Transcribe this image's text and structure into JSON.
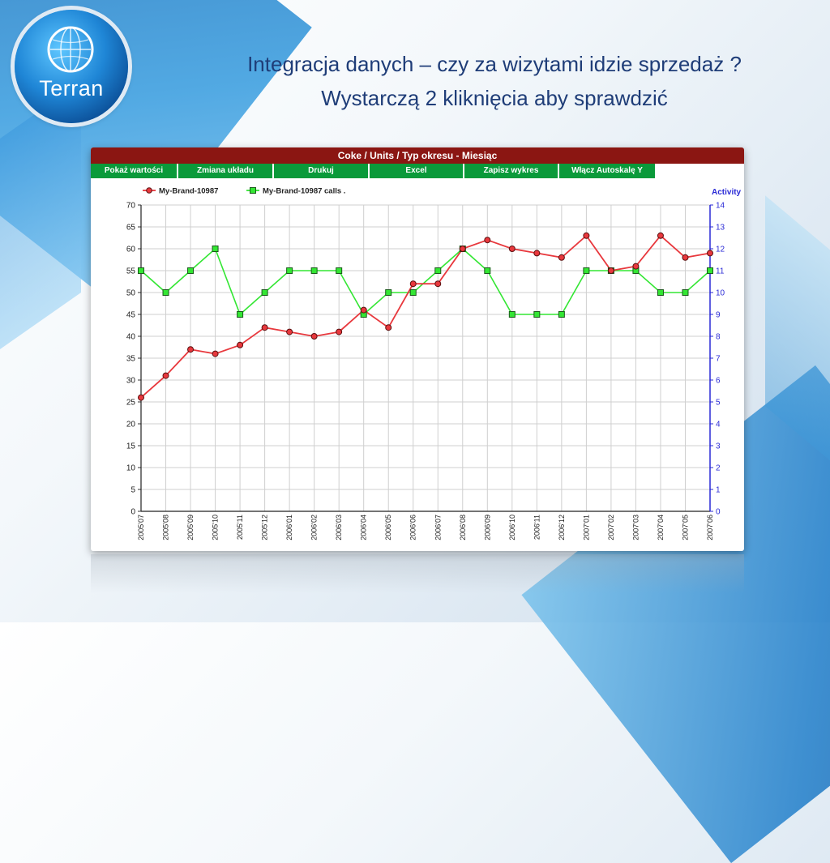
{
  "slide": {
    "logo_text": "Terran",
    "title_line1": "Integracja danych – czy za wizytami idzie sprzedaż ?",
    "title_line2": "Wystarczą 2 kliknięcia aby sprawdzić"
  },
  "panel": {
    "header": "Coke / Units / Typ okresu - Miesiąc",
    "buttons": [
      "Pokaż wartości",
      "Zmiana układu",
      "Drukuj",
      "Excel",
      "Zapisz wykres",
      "Włącz Autoskalę Y"
    ]
  },
  "colors": {
    "header": "#8b1612",
    "button": "#0a9a3a",
    "series1": "#e8383d",
    "series2": "#33e633",
    "right_axis": "#2a2ad6",
    "title": "#1f3d78"
  },
  "chart_data": {
    "type": "line",
    "title": "",
    "categories": [
      "2005'07",
      "2005'08",
      "2005'09",
      "2005'10",
      "2005'11",
      "2005'12",
      "2006'01",
      "2006'02",
      "2006'03",
      "2006'04",
      "2006'05",
      "2006'06",
      "2006'07",
      "2006'08",
      "2006'09",
      "2006'10",
      "2006'11",
      "2006'12",
      "2007'01",
      "2007'02",
      "2007'03",
      "2007'04",
      "2007'05",
      "2007'06"
    ],
    "series": [
      {
        "name": "My-Brand-10987",
        "axis": "left",
        "marker": "circle",
        "values": [
          26,
          31,
          37,
          36,
          38,
          42,
          41,
          40,
          41,
          46,
          42,
          52,
          52,
          60,
          62,
          60,
          59,
          58,
          63,
          55,
          56,
          63,
          58,
          59
        ]
      },
      {
        "name": "My-Brand-10987 calls .",
        "axis": "right",
        "marker": "square",
        "values": [
          11,
          10,
          11,
          12,
          9,
          10,
          11,
          11,
          11,
          9,
          10,
          10,
          11,
          12,
          11,
          9,
          9,
          9,
          11,
          11,
          11,
          10,
          10,
          11
        ]
      }
    ],
    "y_left": {
      "min": 0,
      "max": 70,
      "step": 5
    },
    "y_right": {
      "label": "Activity",
      "min": 0,
      "max": 14,
      "step": 1
    },
    "grid": true,
    "legend_position": "top-left"
  }
}
